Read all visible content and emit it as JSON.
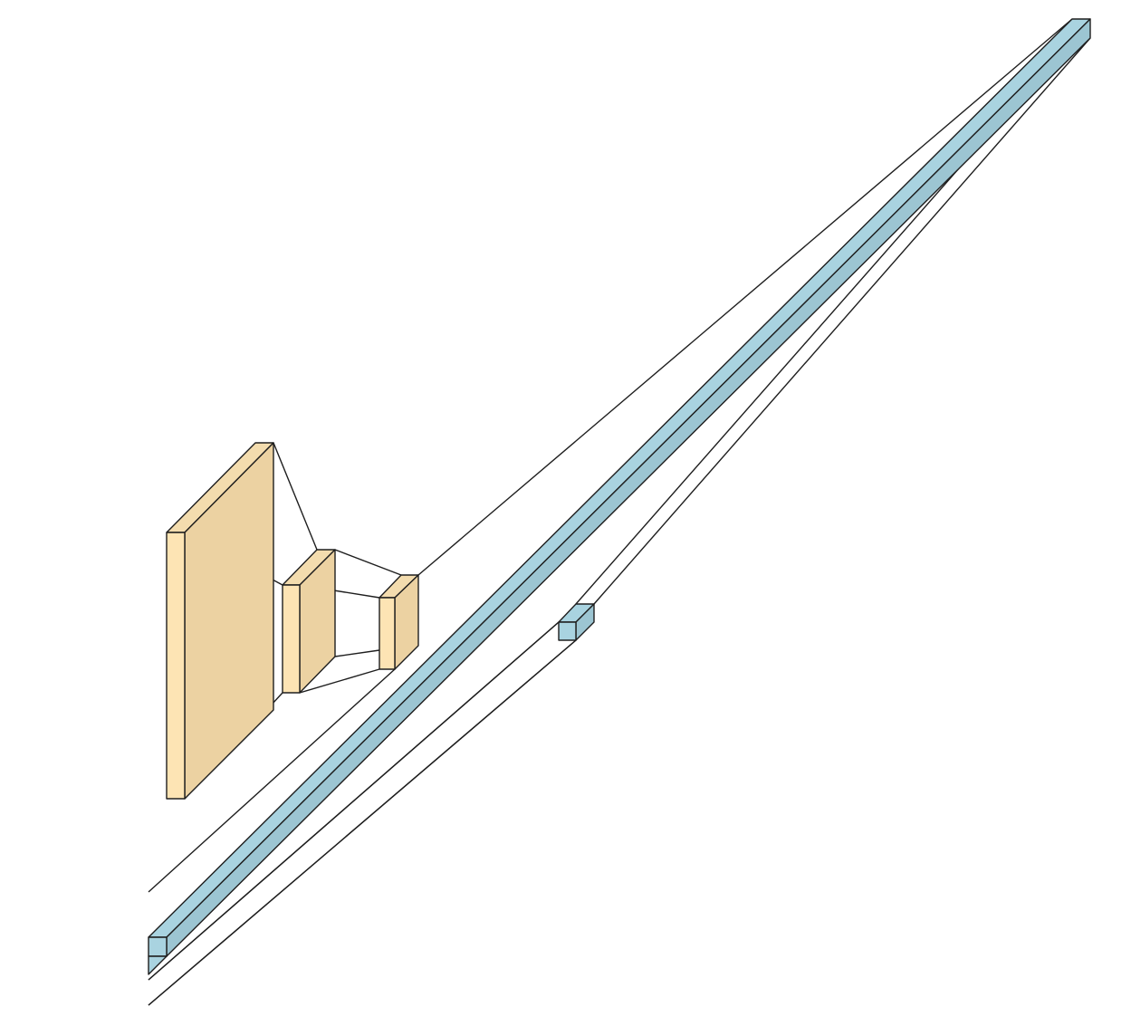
{
  "diagram": {
    "kind": "neural-network-layer-diagram",
    "style": "isometric-volume-blocks",
    "colors": {
      "conv_layer": "#FDE4B4",
      "conv_layer_large": "#ECD2A2",
      "dense_layer": "#A9D3E0",
      "edge": "#1E1E1E",
      "background": "#FFFFFF"
    },
    "layers": [
      {
        "id": "conv-layer-1",
        "type": "conv",
        "color_key": "conv_layer_large"
      },
      {
        "id": "conv-layer-2",
        "type": "conv",
        "color_key": "conv_layer"
      },
      {
        "id": "conv-layer-3",
        "type": "conv",
        "color_key": "conv_layer"
      },
      {
        "id": "dense-layer-long",
        "type": "dense",
        "color_key": "dense_layer"
      },
      {
        "id": "dense-layer-small",
        "type": "dense",
        "color_key": "dense_layer"
      }
    ]
  }
}
